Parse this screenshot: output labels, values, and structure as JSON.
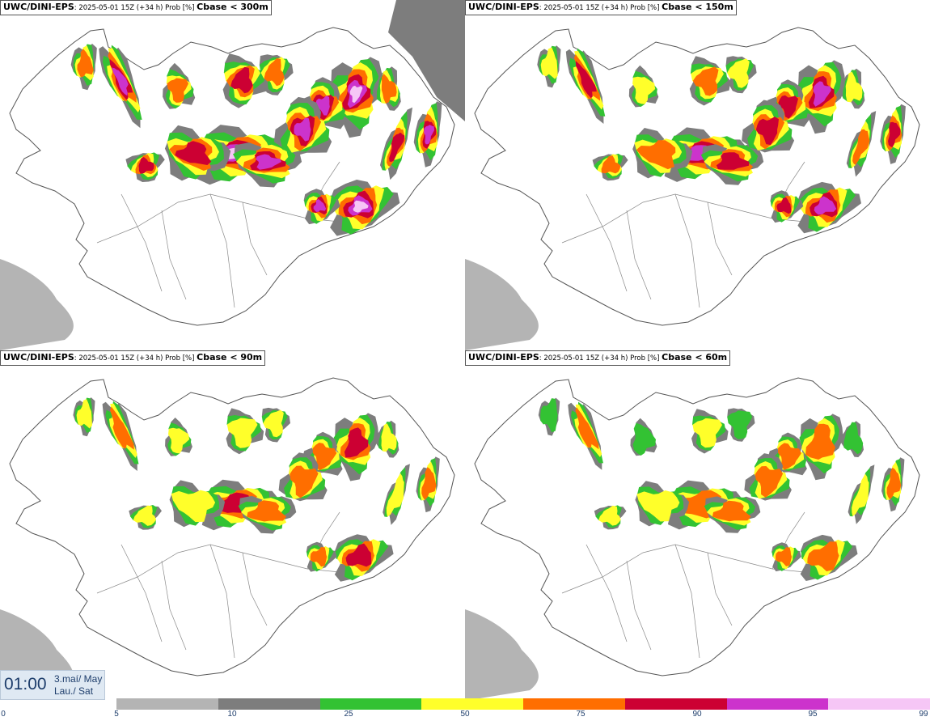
{
  "panels": [
    {
      "model": "UWC/DINI-EPS",
      "run": ": 2025-05-01 15Z (+34 h) Prob [%] ",
      "field": "Cbase < 300m",
      "level": 1.0
    },
    {
      "model": "UWC/DINI-EPS",
      "run": ": 2025-05-01 15Z (+34 h) Prob [%] ",
      "field": "Cbase < 150m",
      "level": 0.8
    },
    {
      "model": "UWC/DINI-EPS",
      "run": ": 2025-05-01 15Z (+34 h) Prob [%] ",
      "field": "Cbase < 90m",
      "level": 0.65
    },
    {
      "model": "UWC/DINI-EPS",
      "run": ": 2025-05-01 15Z (+34 h) Prob [%] ",
      "field": "Cbase < 60m",
      "level": 0.6
    }
  ],
  "timestamp": {
    "time": "01:00",
    "date_line1": "3.maí/ May",
    "date_line2": "Lau./ Sat"
  },
  "legend": {
    "colors": [
      "#b4b4b4",
      "#7d7d7d",
      "#33c233",
      "#ffff2a",
      "#ff6e00",
      "#cc0033",
      "#cc33cc",
      "#f6c6f6"
    ],
    "ticks": [
      "0",
      "5",
      "10",
      "25",
      "50",
      "75",
      "90",
      "95",
      "99"
    ]
  },
  "colors": {
    "land_outline": "#555555",
    "sea": "#ffffff",
    "sea_cloud": "#9a9a9a"
  }
}
